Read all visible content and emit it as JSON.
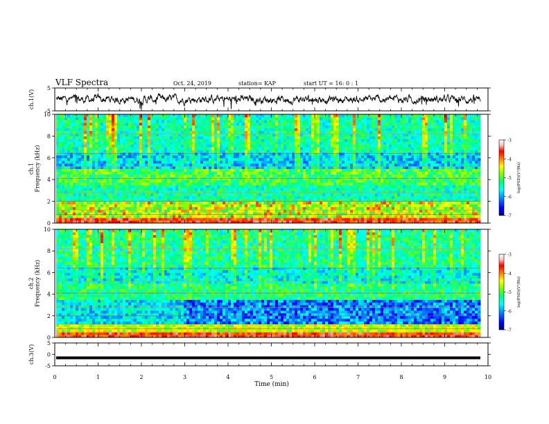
{
  "header": {
    "title": "VLF Spectra",
    "date": "Oct. 24, 2019",
    "station": "station= KAP",
    "start": "start  UT =   16: 0  : 1"
  },
  "chart_data": [
    {
      "type": "line",
      "panel": "ch1-waveform",
      "ylabel": "ch.1(V)",
      "ylim": [
        -5,
        5
      ],
      "yticks": [
        "5",
        "-5"
      ],
      "xlim": [
        0,
        10
      ],
      "series": [
        {
          "values_summary": "noise centered near 0 V, amplitude about ±2 V, spikes to -4 V"
        }
      ]
    },
    {
      "type": "heatmap",
      "panel": "ch1-spectrogram",
      "ylabel": "ch.1\nFrequency  (kHz)",
      "ylim": [
        0,
        10
      ],
      "yticks": [
        "0",
        "2",
        "4",
        "6",
        "8",
        "10"
      ],
      "xlim": [
        0,
        10
      ],
      "colorbar": {
        "label": "log(PSD)(V²/Hz)",
        "range": [
          -7,
          -3
        ],
        "ticks": [
          "-3",
          "-4",
          "-5",
          "-6",
          "-7"
        ]
      }
    },
    {
      "type": "heatmap",
      "panel": "ch2-spectrogram",
      "ylabel": "ch.2\nFrequency  (kHz)",
      "ylim": [
        0,
        10
      ],
      "yticks": [
        "0",
        "2",
        "4",
        "6",
        "8",
        "10"
      ],
      "xlim": [
        0,
        10
      ],
      "colorbar": {
        "label": "log(PSD)(V²/Hz)",
        "range": [
          -7,
          -3
        ],
        "ticks": [
          "-3",
          "-4",
          "-5",
          "-6",
          "-7"
        ]
      }
    },
    {
      "type": "line",
      "panel": "ch3-waveform",
      "ylabel": "ch.3(V)",
      "ylim": [
        -5,
        5
      ],
      "yticks": [
        "5",
        "0",
        "-5"
      ],
      "xlim": [
        0,
        10
      ],
      "series": [
        {
          "values_summary": "nearly constant at about -1.5 V"
        }
      ],
      "xlabel": "Time  (min)",
      "xticks": [
        "0",
        "1",
        "2",
        "3",
        "4",
        "5",
        "6",
        "7",
        "8",
        "9",
        "10"
      ]
    }
  ],
  "colors": {
    "colormap": [
      "#000080",
      "#0000ff",
      "#0080ff",
      "#00ffff",
      "#00ff80",
      "#80ff00",
      "#ffff00",
      "#ff8000",
      "#ff0000",
      "#ffc0c0",
      "#ffffff"
    ],
    "line": "#000000"
  }
}
